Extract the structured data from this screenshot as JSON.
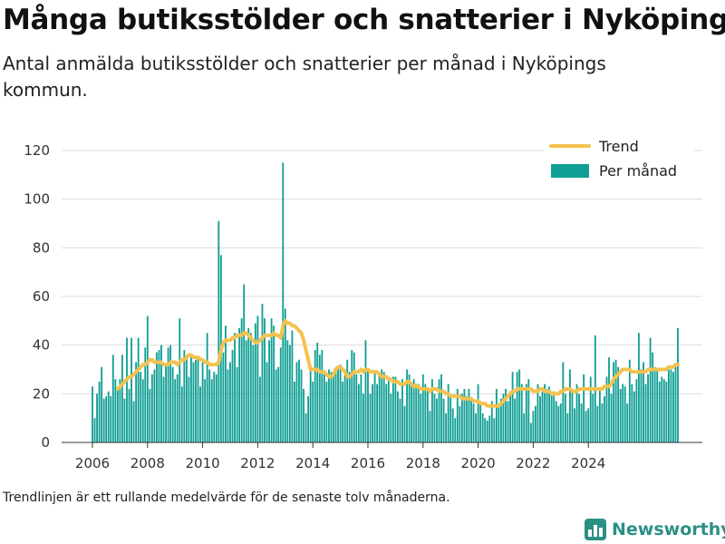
{
  "header": {
    "title": "Många butiksstölder och snatterier i Nyköping",
    "subtitle": "Antal anmälda butiksstölder och snatterier per månad i Nyköpings kommun."
  },
  "footer": {
    "note": "Trendlinjen är ett rullande medelvärde för de senaste tolv månaderna.",
    "brand": "Newsworthy",
    "brand_icon": "bar-chart-logo-icon"
  },
  "colors": {
    "bars": "#0f9e94",
    "trend": "#f4c24f",
    "brand": "#2c8f86"
  },
  "chart_data": {
    "type": "bar",
    "title": "",
    "xlabel": "",
    "ylabel": "",
    "ylim": [
      0,
      120
    ],
    "yticks": [
      0,
      20,
      40,
      60,
      80,
      100,
      120
    ],
    "xticks": [
      "2006",
      "2008",
      "2010",
      "2012",
      "2014",
      "2016",
      "2018",
      "2020",
      "2022",
      "2024"
    ],
    "grid": true,
    "legend_position": "top-right",
    "start": "2006-01",
    "series": [
      {
        "name": "Per månad",
        "type": "bar",
        "values": [
          23,
          10,
          20,
          25,
          31,
          18,
          19,
          21,
          19,
          36,
          26,
          22,
          26,
          36,
          18,
          43,
          22,
          43,
          17,
          33,
          43,
          29,
          26,
          39,
          52,
          22,
          28,
          30,
          37,
          38,
          40,
          27,
          32,
          39,
          40,
          31,
          26,
          28,
          51,
          23,
          38,
          35,
          27,
          36,
          33,
          34,
          35,
          23,
          33,
          26,
          45,
          30,
          26,
          29,
          28,
          91,
          77,
          37,
          48,
          30,
          33,
          38,
          45,
          31,
          47,
          51,
          65,
          42,
          47,
          45,
          40,
          49,
          52,
          27,
          57,
          51,
          33,
          42,
          51,
          48,
          30,
          31,
          39,
          115,
          55,
          42,
          40,
          46,
          25,
          33,
          34,
          30,
          22,
          12,
          19,
          32,
          25,
          38,
          41,
          36,
          38,
          28,
          25,
          30,
          29,
          29,
          31,
          30,
          32,
          25,
          30,
          34,
          29,
          38,
          37,
          28,
          24,
          28,
          20,
          42,
          30,
          20,
          24,
          29,
          24,
          28,
          30,
          29,
          24,
          27,
          20,
          27,
          27,
          21,
          18,
          26,
          15,
          30,
          28,
          23,
          26,
          24,
          24,
          20,
          28,
          24,
          22,
          13,
          26,
          20,
          18,
          26,
          28,
          18,
          12,
          24,
          20,
          14,
          10,
          22,
          15,
          20,
          22,
          19,
          22,
          18,
          16,
          12,
          24,
          17,
          12,
          10,
          9,
          11,
          17,
          10,
          22,
          16,
          18,
          20,
          22,
          17,
          21,
          29,
          18,
          29,
          30,
          24,
          12,
          24,
          26,
          8,
          13,
          15,
          24,
          19,
          21,
          24,
          22,
          23,
          20,
          21,
          17,
          15,
          16,
          33,
          20,
          12,
          30,
          22,
          14,
          24,
          20,
          16,
          28,
          13,
          14,
          27,
          20,
          44,
          15,
          22,
          16,
          19,
          27,
          35,
          20,
          33,
          34,
          31,
          22,
          24,
          23,
          16,
          34,
          24,
          21,
          26,
          45,
          30,
          33,
          24,
          28,
          43,
          37,
          31,
          30,
          25,
          27,
          26,
          25,
          30,
          30,
          29,
          32,
          47
        ]
      },
      {
        "name": "Trend",
        "type": "line",
        "values": [
          null,
          null,
          null,
          null,
          null,
          null,
          null,
          null,
          null,
          null,
          null,
          22,
          23,
          24,
          25,
          26,
          27,
          27,
          28,
          29,
          30,
          31,
          32,
          32,
          33,
          34,
          34,
          33,
          33,
          33,
          33,
          32,
          32,
          32,
          33,
          33,
          33,
          32,
          33,
          34,
          34,
          35,
          36,
          36,
          35,
          35,
          35,
          34,
          34,
          33,
          33,
          32,
          32,
          32,
          32,
          33,
          38,
          41,
          42,
          42,
          42,
          43,
          43,
          44,
          44,
          44,
          45,
          45,
          44,
          43,
          42,
          41,
          41,
          42,
          43,
          44,
          44,
          44,
          44,
          45,
          44,
          44,
          43,
          48,
          50,
          49,
          49,
          48,
          48,
          47,
          46,
          45,
          42,
          38,
          34,
          30,
          30,
          30,
          30,
          29,
          29,
          29,
          28,
          27,
          27,
          28,
          30,
          31,
          31,
          30,
          29,
          27,
          27,
          28,
          29,
          29,
          29,
          30,
          29,
          30,
          30,
          29,
          29,
          29,
          29,
          28,
          27,
          27,
          27,
          26,
          26,
          25,
          25,
          25,
          24,
          24,
          24,
          25,
          25,
          24,
          23,
          23,
          23,
          22,
          22,
          22,
          22,
          21,
          22,
          22,
          22,
          21,
          21,
          21,
          20,
          20,
          19,
          19,
          19,
          19,
          19,
          18,
          18,
          18,
          18,
          18,
          17,
          17,
          17,
          16,
          16,
          16,
          15,
          15,
          15,
          15,
          15,
          15,
          16,
          17,
          18,
          19,
          20,
          21,
          21,
          22,
          22,
          22,
          22,
          22,
          22,
          22,
          21,
          21,
          21,
          22,
          22,
          21,
          21,
          21,
          20,
          20,
          20,
          20,
          21,
          21,
          22,
          22,
          22,
          21,
          21,
          21,
          22,
          22,
          22,
          22,
          22,
          22,
          22,
          22,
          22,
          22,
          22,
          23,
          23,
          23,
          24,
          26,
          27,
          28,
          29,
          30,
          30,
          30,
          30,
          29,
          29,
          29,
          29,
          29,
          29,
          29,
          30,
          30,
          30,
          30,
          30,
          30,
          30,
          30,
          30,
          31,
          31,
          31,
          32,
          32
        ]
      }
    ]
  }
}
